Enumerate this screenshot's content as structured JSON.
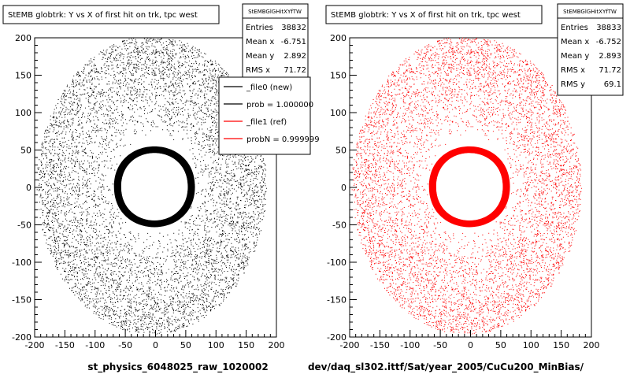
{
  "canvas_bg": "#ffffff",
  "pads": [
    {
      "title": "StEMB globtrk: Y vs X of first hit on trk, tpc west",
      "footer": "st_physics_6048025_raw_1020002",
      "marker_color": "#000000",
      "stats": {
        "name": "StEMBGlGHitXYfTW",
        "rows": [
          {
            "label": "Entries",
            "value": "38832"
          },
          {
            "label": "Mean x",
            "value": "-6.751"
          },
          {
            "label": "Mean y",
            "value": "2.892"
          },
          {
            "label": "RMS x",
            "value": "71.72"
          }
        ]
      },
      "legend": [
        {
          "label": "_file0 (new)",
          "color": "#000000"
        },
        {
          "label": "prob = 1.000000",
          "color": "#000000"
        },
        {
          "label": "_file1 (ref)",
          "color": "#ff0000"
        },
        {
          "label": "probN = 0.999999",
          "color": "#ff0000"
        }
      ]
    },
    {
      "title": "StEMB globtrk: Y vs X of first hit on trk, tpc west",
      "footer": "dev/daq_sl302.ittf/Sat/year_2005/CuCu200_MinBias/",
      "marker_color": "#ff0000",
      "stats": {
        "name": "StEMBGlGHitXYfTW",
        "rows": [
          {
            "label": "Entries",
            "value": "38833"
          },
          {
            "label": "Mean x",
            "value": "-6.752"
          },
          {
            "label": "Mean y",
            "value": "2.893"
          },
          {
            "label": "RMS x",
            "value": "71.72"
          },
          {
            "label": "RMS y",
            "value": "69.1"
          }
        ]
      },
      "legend": []
    }
  ],
  "chart_data": [
    {
      "type": "scatter",
      "title": "StEMB globtrk: Y vs X of first hit on trk, tpc west",
      "xlabel": "st_physics_6048025_raw_1020002",
      "ylabel": "",
      "xlim": [
        -200,
        200
      ],
      "ylim": [
        -200,
        200
      ],
      "xticks": [
        -200,
        -150,
        -100,
        -50,
        0,
        50,
        100,
        150,
        200
      ],
      "yticks": [
        -200,
        -150,
        -100,
        -50,
        0,
        50,
        100,
        150,
        200
      ],
      "entries": 38832,
      "mean_x": -6.751,
      "mean_y": 2.892,
      "rms_x": 71.72,
      "distribution": {
        "center": [
          -6.75,
          2.89
        ],
        "hole_radius_x": 55,
        "hole_radius_y": 60,
        "dense_ring_width": 12,
        "outer_radius": 190
      },
      "color": "#000000",
      "grid": false
    },
    {
      "type": "scatter",
      "title": "StEMB globtrk: Y vs X of first hit on trk, tpc west",
      "xlabel": "dev/daq_sl302.ittf/Sat/year_2005/CuCu200_MinBias/",
      "ylabel": "",
      "xlim": [
        -200,
        200
      ],
      "ylim": [
        -200,
        200
      ],
      "xticks": [
        -200,
        -150,
        -100,
        -50,
        0,
        50,
        100,
        150,
        200
      ],
      "yticks": [
        -200,
        -150,
        -100,
        -50,
        0,
        50,
        100,
        150,
        200
      ],
      "entries": 38833,
      "mean_x": -6.752,
      "mean_y": 2.893,
      "rms_x": 71.72,
      "rms_y": 69.1,
      "distribution": {
        "center": [
          -6.75,
          2.89
        ],
        "hole_radius_x": 55,
        "hole_radius_y": 60,
        "dense_ring_width": 12,
        "outer_radius": 190
      },
      "color": "#ff0000",
      "grid": false
    }
  ]
}
